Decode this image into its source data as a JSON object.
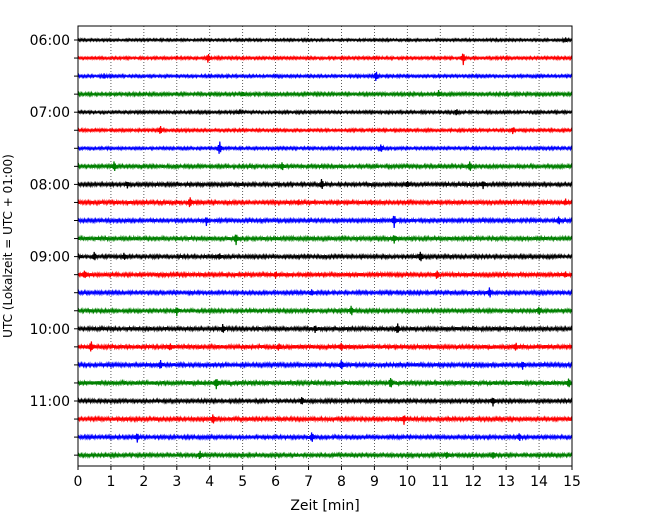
{
  "chart_data": {
    "type": "line",
    "title": "",
    "xlabel": "Zeit  [min]",
    "ylabel": "UTC (Lokalzeit = UTC + 01:00)",
    "xlim": [
      0,
      15
    ],
    "x_ticks": [
      0,
      1,
      2,
      3,
      4,
      5,
      6,
      7,
      8,
      9,
      10,
      11,
      12,
      13,
      14,
      15
    ],
    "x_tick_labels": [
      "0",
      "1",
      "2",
      "3",
      "4",
      "5",
      "6",
      "7",
      "8",
      "9",
      "10",
      "11",
      "12",
      "13",
      "14",
      "15"
    ],
    "vertical_grid": "dotted at every minute",
    "y_tick_labels": [
      "06:00",
      "07:00",
      "08:00",
      "09:00",
      "10:00",
      "11:00"
    ],
    "trace_interval_min": 15,
    "trace_duration_min": 15,
    "start_time_utc": "06:00",
    "color_cycle": [
      "#000000",
      "#ff0000",
      "#0000ff",
      "#008000"
    ],
    "series": [
      {
        "start": "06:00",
        "color": "#000000",
        "noise": 0.35,
        "spikes": [
          [
            14.8,
            2.0
          ]
        ]
      },
      {
        "start": "06:15",
        "color": "#ff0000",
        "noise": 0.4,
        "spikes": [
          [
            3.95,
            5.0
          ],
          [
            11.7,
            6.0
          ]
        ]
      },
      {
        "start": "06:30",
        "color": "#0000ff",
        "noise": 0.4,
        "spikes": [
          [
            0.8,
            2.5
          ],
          [
            9.05,
            5.0
          ]
        ]
      },
      {
        "start": "06:45",
        "color": "#008000",
        "noise": 0.45,
        "spikes": [
          [
            5.0,
            2.0
          ],
          [
            10.95,
            3.0
          ]
        ]
      },
      {
        "start": "07:00",
        "color": "#000000",
        "noise": 0.4,
        "spikes": [
          [
            4.9,
            2.0
          ],
          [
            11.5,
            3.0
          ]
        ]
      },
      {
        "start": "07:15",
        "color": "#ff0000",
        "noise": 0.4,
        "spikes": [
          [
            2.5,
            4.0
          ],
          [
            13.2,
            3.0
          ]
        ]
      },
      {
        "start": "07:30",
        "color": "#0000ff",
        "noise": 0.4,
        "spikes": [
          [
            4.3,
            7.0
          ],
          [
            9.2,
            4.0
          ]
        ]
      },
      {
        "start": "07:45",
        "color": "#008000",
        "noise": 0.5,
        "spikes": [
          [
            1.1,
            5.0
          ],
          [
            6.2,
            3.5
          ],
          [
            11.9,
            5.0
          ]
        ]
      },
      {
        "start": "08:00",
        "color": "#000000",
        "noise": 0.5,
        "spikes": [
          [
            1.5,
            3.0
          ],
          [
            7.4,
            5.0
          ],
          [
            10.0,
            3.0
          ],
          [
            12.3,
            3.5
          ]
        ]
      },
      {
        "start": "08:15",
        "color": "#ff0000",
        "noise": 0.55,
        "spikes": [
          [
            3.4,
            5.0
          ],
          [
            6.7,
            2.5
          ],
          [
            8.9,
            2.0
          ],
          [
            14.8,
            3.0
          ]
        ]
      },
      {
        "start": "08:30",
        "color": "#0000ff",
        "noise": 0.5,
        "spikes": [
          [
            3.9,
            4.0
          ],
          [
            9.6,
            6.0
          ],
          [
            14.6,
            4.0
          ]
        ]
      },
      {
        "start": "08:45",
        "color": "#008000",
        "noise": 0.55,
        "spikes": [
          [
            4.8,
            5.0
          ],
          [
            9.6,
            4.0
          ]
        ]
      },
      {
        "start": "09:00",
        "color": "#000000",
        "noise": 0.5,
        "spikes": [
          [
            0.5,
            4.0
          ],
          [
            1.4,
            3.0
          ],
          [
            4.3,
            3.0
          ],
          [
            10.4,
            5.0
          ]
        ]
      },
      {
        "start": "09:15",
        "color": "#ff0000",
        "noise": 0.55,
        "spikes": [
          [
            0.2,
            4.0
          ],
          [
            6.0,
            3.0
          ],
          [
            10.9,
            4.0
          ],
          [
            14.8,
            2.5
          ]
        ]
      },
      {
        "start": "09:30",
        "color": "#0000ff",
        "noise": 0.5,
        "spikes": [
          [
            7.1,
            3.0
          ],
          [
            12.5,
            5.0
          ]
        ]
      },
      {
        "start": "09:45",
        "color": "#008000",
        "noise": 0.5,
        "spikes": [
          [
            3.0,
            4.0
          ],
          [
            8.3,
            5.0
          ],
          [
            14.0,
            4.0
          ]
        ]
      },
      {
        "start": "10:00",
        "color": "#000000",
        "noise": 0.55,
        "spikes": [
          [
            4.4,
            4.0
          ],
          [
            7.2,
            3.0
          ],
          [
            9.7,
            5.0
          ]
        ]
      },
      {
        "start": "10:15",
        "color": "#ff0000",
        "noise": 0.6,
        "spikes": [
          [
            0.4,
            5.0
          ],
          [
            2.8,
            3.0
          ],
          [
            6.1,
            3.0
          ],
          [
            8.0,
            4.0
          ],
          [
            13.3,
            3.0
          ]
        ]
      },
      {
        "start": "10:30",
        "color": "#0000ff",
        "noise": 0.55,
        "spikes": [
          [
            2.5,
            4.0
          ],
          [
            8.0,
            4.0
          ],
          [
            13.5,
            4.0
          ]
        ]
      },
      {
        "start": "10:45",
        "color": "#008000",
        "noise": 0.6,
        "spikes": [
          [
            4.2,
            5.0
          ],
          [
            9.5,
            5.0
          ],
          [
            14.9,
            4.0
          ]
        ]
      },
      {
        "start": "11:00",
        "color": "#000000",
        "noise": 0.5,
        "spikes": [
          [
            6.8,
            4.0
          ],
          [
            12.6,
            4.0
          ]
        ]
      },
      {
        "start": "11:15",
        "color": "#ff0000",
        "noise": 0.55,
        "spikes": [
          [
            4.1,
            4.5
          ],
          [
            9.9,
            4.5
          ]
        ]
      },
      {
        "start": "11:30",
        "color": "#0000ff",
        "noise": 0.5,
        "spikes": [
          [
            1.8,
            4.0
          ],
          [
            7.1,
            5.0
          ],
          [
            13.4,
            3.5
          ]
        ]
      },
      {
        "start": "11:45",
        "color": "#008000",
        "noise": 0.5,
        "spikes": [
          [
            3.7,
            4.5
          ],
          [
            11.2,
            3.0
          ],
          [
            12.6,
            3.0
          ]
        ]
      }
    ]
  }
}
